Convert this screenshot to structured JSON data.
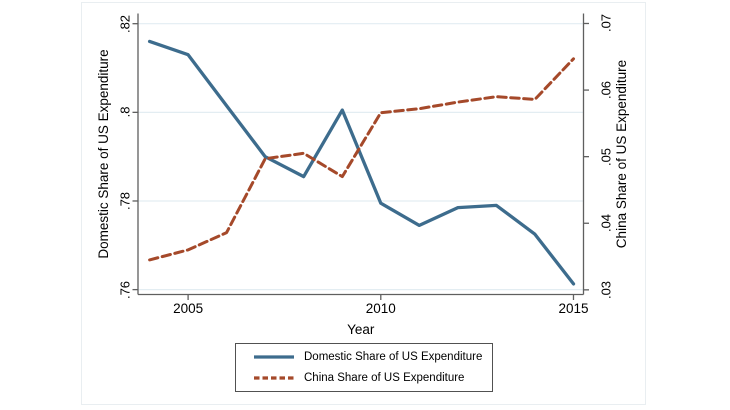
{
  "figure": {
    "background_color": "#ffffff",
    "border_color": "#e9eef1"
  },
  "chart_data": {
    "type": "line",
    "x": [
      2004,
      2005,
      2006,
      2007,
      2008,
      2009,
      2010,
      2011,
      2012,
      2013,
      2014,
      2015
    ],
    "series": [
      {
        "name": "Domestic Share of US Expenditure",
        "axis": "left",
        "style": "solid",
        "color": "#3d6c8d",
        "values": [
          0.816,
          0.813,
          0.8015,
          0.79,
          0.7855,
          0.8005,
          0.7795,
          0.7745,
          0.7785,
          0.779,
          0.7725,
          0.7613
        ]
      },
      {
        "name": "China Share of US Expenditure",
        "axis": "right",
        "style": "dashed",
        "color": "#a5492a",
        "values": [
          0.0345,
          0.036,
          0.0386,
          0.0497,
          0.0505,
          0.047,
          0.0566,
          0.0572,
          0.0582,
          0.059,
          0.0586,
          0.0647
        ]
      }
    ],
    "xlabel": "Year",
    "ylabel_left": "Domestic Share of US Expenditure",
    "ylabel_right": "China Share of US Expenditure",
    "xlim": [
      2003.7,
      2015.26
    ],
    "ylim_left": [
      0.7589,
      0.8223
    ],
    "ylim_right": [
      0.0293,
      0.0715
    ],
    "xticks": [
      {
        "value": 2005,
        "label": "2005"
      },
      {
        "value": 2010,
        "label": "2010"
      },
      {
        "value": 2015,
        "label": "2015"
      }
    ],
    "yticks_left": [
      {
        "value": 0.82,
        "label": ".82"
      },
      {
        "value": 0.8,
        "label": ".8"
      },
      {
        "value": 0.78,
        "label": ".78"
      },
      {
        "value": 0.76,
        "label": ".76"
      }
    ],
    "yticks_right": [
      {
        "value": 0.07,
        "label": ".07"
      },
      {
        "value": 0.06,
        "label": ".06"
      },
      {
        "value": 0.05,
        "label": ".05"
      },
      {
        "value": 0.04,
        "label": ".04"
      },
      {
        "value": 0.03,
        "label": ".03"
      }
    ],
    "grid": "horizontal-at-left-ticks",
    "gridline_color": "#e3edf2",
    "axis_color": "#5f5f5f",
    "legend": {
      "position": "bottom",
      "boxed": true
    }
  }
}
